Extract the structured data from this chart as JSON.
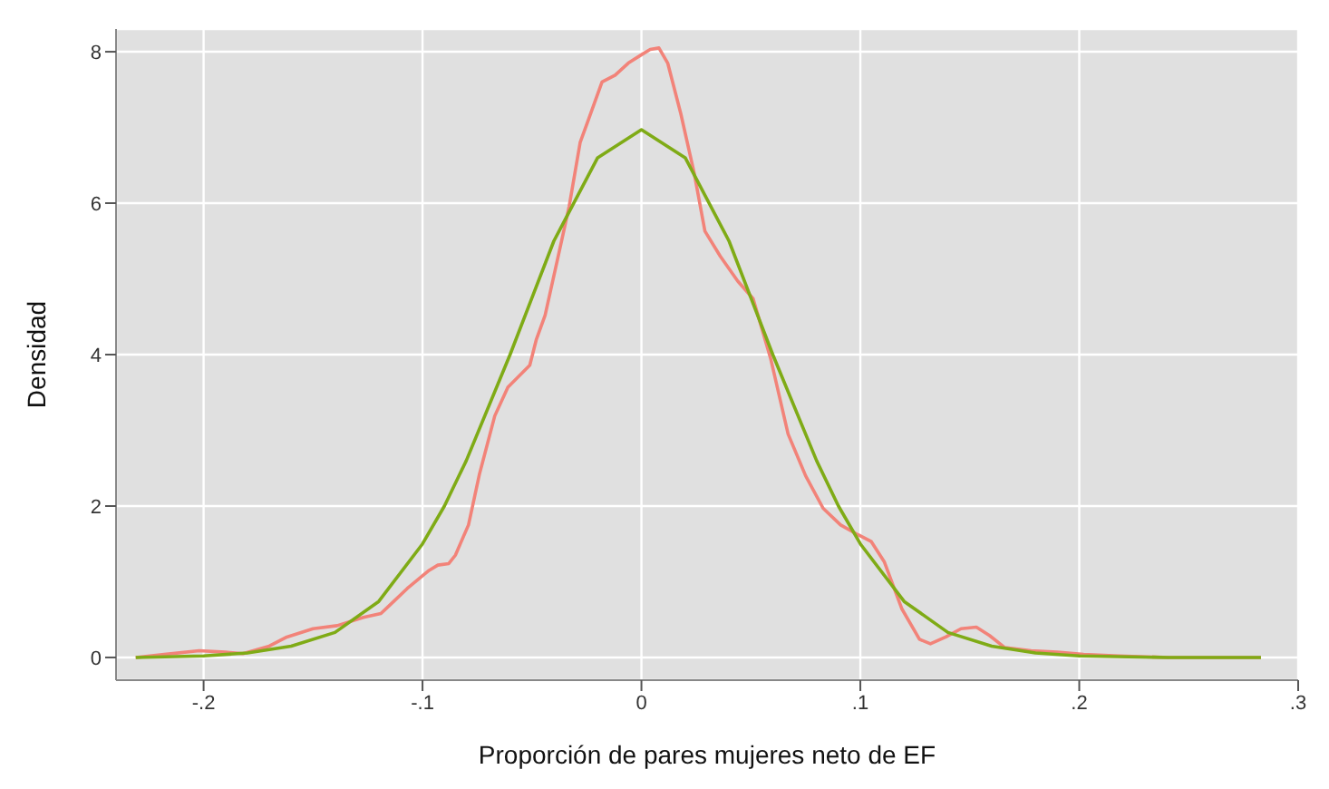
{
  "chart_data": {
    "type": "line",
    "xlabel": "Proporción de pares mujeres neto de EF",
    "ylabel": "Densidad",
    "xlim": [
      -0.24,
      0.3
    ],
    "xticks": [
      {
        "value": -0.2,
        "label": "-.2"
      },
      {
        "value": -0.1,
        "label": "-.1"
      },
      0,
      {
        "value": 0.1,
        "label": ".1"
      },
      {
        "value": 0.2,
        "label": ".2"
      },
      {
        "value": 0.3,
        "label": ".3"
      }
    ],
    "ylim": [
      -0.3,
      8.3
    ],
    "yticks": [
      0,
      2,
      4,
      6,
      8
    ],
    "grid": true,
    "legend": false,
    "marker": "none",
    "line_style": "solid",
    "series": [
      {
        "color": "#f28379",
        "x": [
          -0.231,
          -0.218,
          -0.202,
          -0.19,
          -0.182,
          -0.17,
          -0.162,
          -0.15,
          -0.139,
          -0.127,
          -0.119,
          -0.115,
          -0.107,
          -0.097,
          -0.093,
          -0.088,
          -0.085,
          -0.079,
          -0.074,
          -0.067,
          -0.061,
          -0.051,
          -0.048,
          -0.044,
          -0.038,
          -0.033,
          -0.028,
          -0.024,
          -0.018,
          -0.012,
          -0.006,
          0,
          0.004,
          0.008,
          0.012,
          0.018,
          0.024,
          0.029,
          0.036,
          0.044,
          0.051,
          0.059,
          0.067,
          0.075,
          0.083,
          0.091,
          0.099,
          0.105,
          0.111,
          0.119,
          0.127,
          0.132,
          0.139,
          0.146,
          0.153,
          0.159,
          0.166,
          0.178,
          0.19,
          0.202,
          0.218,
          0.241,
          0.273,
          0.283
        ],
        "values": [
          0,
          0.04,
          0.09,
          0.07,
          0.05,
          0.15,
          0.27,
          0.38,
          0.42,
          0.53,
          0.58,
          0.69,
          0.91,
          1.15,
          1.22,
          1.24,
          1.35,
          1.75,
          2.42,
          3.19,
          3.57,
          3.86,
          4.2,
          4.52,
          5.3,
          5.96,
          6.8,
          7.12,
          7.6,
          7.69,
          7.85,
          7.96,
          8.03,
          8.05,
          7.85,
          7.18,
          6.41,
          5.63,
          5.3,
          4.97,
          4.74,
          3.95,
          2.95,
          2.4,
          1.97,
          1.75,
          1.62,
          1.53,
          1.26,
          0.64,
          0.24,
          0.18,
          0.27,
          0.38,
          0.4,
          0.29,
          0.13,
          0.09,
          0.07,
          0.04,
          0.02,
          0,
          0,
          0
        ]
      },
      {
        "color": "#7fab16",
        "x": [
          -0.231,
          -0.2,
          -0.18,
          -0.16,
          -0.14,
          -0.12,
          -0.1,
          -0.09,
          -0.08,
          -0.06,
          -0.05,
          -0.04,
          -0.02,
          0,
          0.02,
          0.04,
          0.05,
          0.06,
          0.08,
          0.09,
          0.1,
          0.12,
          0.14,
          0.16,
          0.18,
          0.2,
          0.24,
          0.283
        ],
        "values": [
          0,
          0.02,
          0.06,
          0.15,
          0.33,
          0.74,
          1.5,
          2.0,
          2.6,
          4.0,
          4.75,
          5.5,
          6.6,
          6.97,
          6.6,
          5.5,
          4.75,
          4.0,
          2.6,
          2.0,
          1.5,
          0.74,
          0.33,
          0.15,
          0.06,
          0.02,
          0,
          0
        ]
      }
    ]
  }
}
